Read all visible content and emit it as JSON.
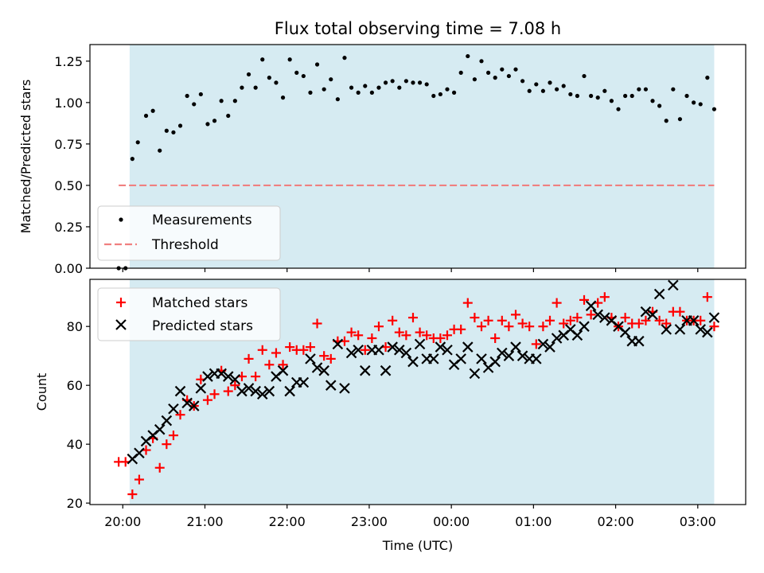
{
  "chart_data": [
    {
      "type": "scatter",
      "title": "Flux total observing time = 7.08 h",
      "xlabel": "",
      "ylabel": "Matched/Predicted stars",
      "ylim": [
        0,
        1.35
      ],
      "yticks": [
        0.0,
        0.25,
        0.5,
        0.75,
        1.0,
        1.25
      ],
      "ytick_labels": [
        "0.00",
        "0.25",
        "0.50",
        "0.75",
        "1.00",
        "1.25"
      ],
      "legend_position": "lower-left",
      "shaded_span": {
        "start": "20:05",
        "end": "03:12",
        "color": "#add8e6"
      },
      "threshold": {
        "name": "Threshold",
        "value": 0.5,
        "start": "19:57",
        "end": "03:12",
        "color": "#f08080"
      },
      "series": [
        {
          "name": "Measurements",
          "color": "#000000",
          "x": [
            "19:57",
            "20:02",
            "20:07",
            "20:11",
            "20:17",
            "20:22",
            "20:27",
            "20:32",
            "20:37",
            "20:42",
            "20:47",
            "20:52",
            "20:57",
            "21:02",
            "21:07",
            "21:12",
            "21:17",
            "21:22",
            "21:27",
            "21:32",
            "21:37",
            "21:42",
            "21:47",
            "21:52",
            "21:57",
            "22:02",
            "22:07",
            "22:12",
            "22:17",
            "22:22",
            "22:27",
            "22:32",
            "22:37",
            "22:42",
            "22:47",
            "22:52",
            "22:57",
            "23:02",
            "23:07",
            "23:12",
            "23:17",
            "23:22",
            "23:27",
            "23:32",
            "23:37",
            "23:42",
            "23:47",
            "23:52",
            "23:57",
            "00:02",
            "00:07",
            "00:12",
            "00:17",
            "00:22",
            "00:27",
            "00:32",
            "00:37",
            "00:42",
            "00:47",
            "00:52",
            "00:57",
            "01:02",
            "01:07",
            "01:12",
            "01:17",
            "01:22",
            "01:27",
            "01:32",
            "01:37",
            "01:42",
            "01:47",
            "01:52",
            "01:57",
            "02:02",
            "02:07",
            "02:12",
            "02:17",
            "02:22",
            "02:27",
            "02:32",
            "02:37",
            "02:42",
            "02:47",
            "02:52",
            "02:57",
            "03:02",
            "03:07",
            "03:12"
          ],
          "y": [
            0.0,
            0.0,
            0.66,
            0.76,
            0.92,
            0.95,
            0.71,
            0.83,
            0.82,
            0.86,
            1.04,
            0.99,
            1.05,
            0.87,
            0.89,
            1.01,
            0.92,
            1.01,
            1.09,
            1.17,
            1.09,
            1.26,
            1.15,
            1.12,
            1.03,
            1.26,
            1.18,
            1.16,
            1.06,
            1.23,
            1.08,
            1.14,
            1.02,
            1.27,
            1.09,
            1.06,
            1.1,
            1.06,
            1.09,
            1.12,
            1.13,
            1.09,
            1.13,
            1.12,
            1.12,
            1.11,
            1.04,
            1.05,
            1.08,
            1.06,
            1.18,
            1.28,
            1.14,
            1.25,
            1.18,
            1.15,
            1.2,
            1.16,
            1.2,
            1.13,
            1.07,
            1.11,
            1.07,
            1.12,
            1.08,
            1.1,
            1.05,
            1.04,
            1.16,
            1.04,
            1.03,
            1.07,
            1.01,
            0.96,
            1.04,
            1.04,
            1.08,
            1.08,
            1.01,
            0.98,
            0.89,
            1.08,
            0.9,
            1.04,
            1.0,
            0.99,
            1.15,
            0.96
          ]
        }
      ]
    },
    {
      "type": "scatter",
      "title": "",
      "xlabel": "Time (UTC)",
      "ylabel": "Count",
      "ylim": [
        19.5,
        96
      ],
      "yticks": [
        20,
        40,
        60,
        80
      ],
      "ytick_labels": [
        "20",
        "40",
        "60",
        "80"
      ],
      "xticks": [
        "20:00",
        "21:00",
        "22:00",
        "23:00",
        "00:00",
        "01:00",
        "02:00",
        "03:00"
      ],
      "xtick_labels": [
        "20:00",
        "21:00",
        "22:00",
        "23:00",
        "00:00",
        "01:00",
        "02:00",
        "03:00"
      ],
      "legend_position": "upper-left",
      "shaded_span": {
        "start": "20:05",
        "end": "03:12",
        "color": "#add8e6"
      },
      "series": [
        {
          "name": "Matched stars",
          "marker": "plus",
          "color": "#ff0000",
          "x": [
            "19:57",
            "20:02",
            "20:07",
            "20:12",
            "20:17",
            "20:22",
            "20:27",
            "20:32",
            "20:37",
            "20:42",
            "20:47",
            "20:52",
            "20:57",
            "21:02",
            "21:07",
            "21:12",
            "21:17",
            "21:22",
            "21:27",
            "21:32",
            "21:37",
            "21:42",
            "21:47",
            "21:52",
            "21:57",
            "22:02",
            "22:07",
            "22:12",
            "22:17",
            "22:22",
            "22:27",
            "22:32",
            "22:37",
            "22:42",
            "22:47",
            "22:52",
            "22:57",
            "23:02",
            "23:07",
            "23:12",
            "23:17",
            "23:22",
            "23:27",
            "23:32",
            "23:37",
            "23:42",
            "23:47",
            "23:52",
            "23:57",
            "00:02",
            "00:07",
            "00:12",
            "00:17",
            "00:22",
            "00:27",
            "00:32",
            "00:37",
            "00:42",
            "00:47",
            "00:52",
            "00:57",
            "01:02",
            "01:07",
            "01:12",
            "01:17",
            "01:22",
            "01:27",
            "01:32",
            "01:37",
            "01:42",
            "01:47",
            "01:52",
            "01:57",
            "02:02",
            "02:07",
            "02:12",
            "02:17",
            "02:22",
            "02:27",
            "02:32",
            "02:37",
            "02:42",
            "02:47",
            "02:52",
            "02:57",
            "03:02",
            "03:07",
            "03:12"
          ],
          "y": [
            34,
            34,
            23,
            28,
            38,
            42,
            32,
            40,
            43,
            50,
            55,
            53,
            62,
            55,
            57,
            65,
            58,
            60,
            63,
            69,
            63,
            72,
            67,
            71,
            67,
            73,
            72,
            72,
            73,
            81,
            70,
            69,
            75,
            75,
            78,
            77,
            72,
            76,
            80,
            73,
            82,
            78,
            77,
            83,
            78,
            77,
            76,
            76,
            77,
            79,
            79,
            88,
            83,
            80,
            82,
            76,
            82,
            80,
            84,
            81,
            80,
            74,
            80,
            82,
            88,
            81,
            82,
            83,
            89,
            84,
            88,
            90,
            83,
            80,
            83,
            81,
            81,
            82,
            85,
            82,
            81,
            85,
            85,
            82,
            82,
            82,
            90,
            80
          ]
        },
        {
          "name": "Predicted stars",
          "marker": "x",
          "color": "#000000",
          "x": [
            "20:07",
            "20:12",
            "20:17",
            "20:22",
            "20:27",
            "20:32",
            "20:37",
            "20:42",
            "20:47",
            "20:52",
            "20:57",
            "21:02",
            "21:07",
            "21:12",
            "21:17",
            "21:22",
            "21:27",
            "21:32",
            "21:37",
            "21:42",
            "21:47",
            "21:52",
            "21:57",
            "22:02",
            "22:07",
            "22:12",
            "22:17",
            "22:22",
            "22:27",
            "22:32",
            "22:37",
            "22:42",
            "22:47",
            "22:52",
            "22:57",
            "23:02",
            "23:07",
            "23:12",
            "23:17",
            "23:22",
            "23:27",
            "23:32",
            "23:37",
            "23:42",
            "23:47",
            "23:52",
            "23:57",
            "00:02",
            "00:07",
            "00:12",
            "00:17",
            "00:22",
            "00:27",
            "00:32",
            "00:37",
            "00:42",
            "00:47",
            "00:52",
            "00:57",
            "01:02",
            "01:07",
            "01:12",
            "01:17",
            "01:22",
            "01:27",
            "01:32",
            "01:37",
            "01:42",
            "01:47",
            "01:52",
            "01:57",
            "02:02",
            "02:07",
            "02:12",
            "02:17",
            "02:22",
            "02:27",
            "02:32",
            "02:37",
            "02:42",
            "02:47",
            "02:52",
            "02:57",
            "03:02",
            "03:07",
            "03:12"
          ],
          "y": [
            35,
            37,
            41,
            43,
            45,
            48,
            52,
            58,
            54,
            53,
            59,
            63,
            64,
            64,
            63,
            62,
            58,
            59,
            58,
            57,
            58,
            63,
            65,
            58,
            61,
            61,
            69,
            66,
            65,
            60,
            74,
            59,
            71,
            72,
            65,
            72,
            72,
            65,
            73,
            72,
            71,
            68,
            74,
            69,
            69,
            73,
            72,
            67,
            69,
            73,
            64,
            69,
            66,
            68,
            71,
            70,
            73,
            70,
            69,
            69,
            74,
            73,
            76,
            77,
            79,
            77,
            80,
            87,
            84,
            83,
            82,
            80,
            78,
            75,
            75,
            85,
            84,
            91,
            79,
            94,
            79,
            82,
            82,
            79,
            78,
            83
          ]
        }
      ]
    }
  ]
}
